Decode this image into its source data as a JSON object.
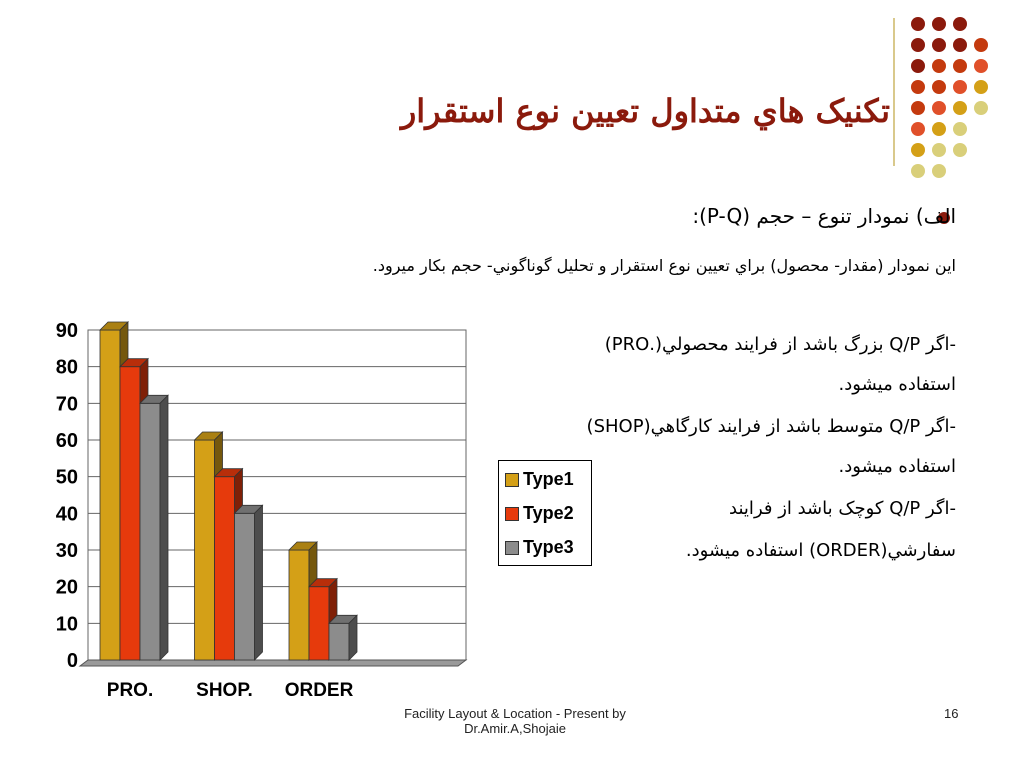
{
  "slide": {
    "title": "تکنيک هاي متداول تعيين نوع استقرار",
    "bullet": "الف) نمودار تنوع – حجم (P-Q):",
    "description": "اين نمودار (مقدار- محصول) براي تعيين نوع استقرار و تحليل گوناگوني- حجم بكار ميرود.",
    "notes": [
      {
        "line1": "-اگر Q/P بزرگ باشد از فرايند محصولي(.PRO)",
        "line2": "استفاده ميشود."
      },
      {
        "line1": "-اگر Q/P متوسط باشد از فرايند كارگاهي(SHOP)",
        "line2": "استفاده ميشود."
      },
      {
        "line1": "-اگر Q/P كوچک باشد از فرايند",
        "line2": "سفارشي(ORDER) استفاده ميشود."
      }
    ],
    "footer_line1": "Facility Layout & Location - Present by",
    "footer_line2": "Dr.Amir.A,Shojaie",
    "page_number": "16",
    "accent_color": "#8b1a0c"
  },
  "chart_data": {
    "type": "bar",
    "categories": [
      "PRO.",
      "SHOP.",
      "ORDER",
      ""
    ],
    "series": [
      {
        "name": "Type1",
        "values": [
          90,
          60,
          30,
          0
        ],
        "color": "#d4a017"
      },
      {
        "name": "Type2",
        "values": [
          80,
          50,
          20,
          0
        ],
        "color": "#e63a0c"
      },
      {
        "name": "Type3",
        "values": [
          70,
          40,
          10,
          0
        ],
        "color": "#8c8c8c"
      }
    ],
    "ylim": [
      0,
      90
    ],
    "yticks": [
      "0",
      "10",
      "20",
      "30",
      "40",
      "50",
      "60",
      "70",
      "80",
      "90"
    ],
    "legend": "right",
    "grid": true
  }
}
